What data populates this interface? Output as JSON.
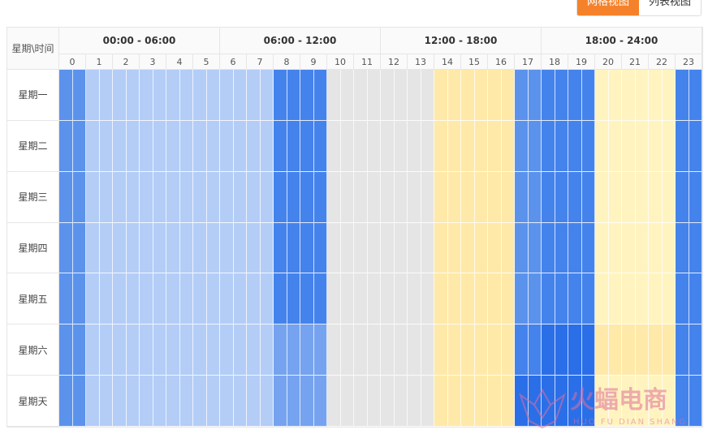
{
  "view_toggle": {
    "grid_label": "网格视图",
    "list_label": "列表视图",
    "active": "grid"
  },
  "grid": {
    "corner_label": "星期\\时间",
    "blocks": [
      "00:00 - 06:00",
      "06:00 - 12:00",
      "12:00 - 18:00",
      "18:00 - 24:00"
    ],
    "hours": [
      "0",
      "1",
      "2",
      "3",
      "4",
      "5",
      "6",
      "7",
      "8",
      "9",
      "10",
      "11",
      "12",
      "13",
      "14",
      "15",
      "16",
      "17",
      "18",
      "19",
      "20",
      "21",
      "22",
      "23"
    ],
    "days": [
      "星期一",
      "星期二",
      "星期三",
      "星期四",
      "星期五",
      "星期六",
      "星期天"
    ],
    "palette": {
      "0": "#e5e5e5",
      "1": "#fff4bf",
      "2": "#ffe9a8",
      "3": "#b3cdf7",
      "4": "#76a3ef",
      "5": "#5b93ec",
      "6": "#4583ec",
      "7": "#2b6fe8"
    },
    "levels": [
      [
        5,
        3,
        3,
        3,
        3,
        3,
        3,
        3,
        6,
        6,
        0,
        0,
        0,
        0,
        2,
        2,
        2,
        5,
        6,
        6,
        1,
        1,
        1,
        6
      ],
      [
        5,
        3,
        3,
        3,
        3,
        3,
        3,
        3,
        6,
        6,
        0,
        0,
        0,
        0,
        2,
        2,
        2,
        5,
        6,
        6,
        1,
        1,
        1,
        6
      ],
      [
        5,
        3,
        3,
        3,
        3,
        3,
        3,
        3,
        6,
        6,
        0,
        0,
        0,
        0,
        2,
        2,
        2,
        5,
        6,
        6,
        1,
        1,
        1,
        6
      ],
      [
        5,
        3,
        3,
        3,
        3,
        3,
        3,
        3,
        6,
        6,
        0,
        0,
        0,
        0,
        2,
        2,
        2,
        5,
        6,
        6,
        1,
        1,
        1,
        6
      ],
      [
        5,
        3,
        3,
        3,
        3,
        3,
        3,
        3,
        6,
        6,
        0,
        0,
        0,
        0,
        2,
        2,
        2,
        5,
        6,
        6,
        1,
        1,
        1,
        6
      ],
      [
        5,
        3,
        3,
        3,
        3,
        3,
        3,
        3,
        4,
        4,
        0,
        0,
        0,
        0,
        2,
        2,
        2,
        6,
        7,
        7,
        2,
        2,
        2,
        6
      ],
      [
        5,
        3,
        3,
        3,
        3,
        3,
        3,
        3,
        4,
        4,
        0,
        0,
        0,
        0,
        2,
        2,
        2,
        7,
        7,
        7,
        1,
        1,
        1,
        6
      ]
    ]
  },
  "watermark": {
    "cn": "火蝠电商",
    "en": "HUO FU DIAN SHANG",
    "color": "#e0709a"
  }
}
